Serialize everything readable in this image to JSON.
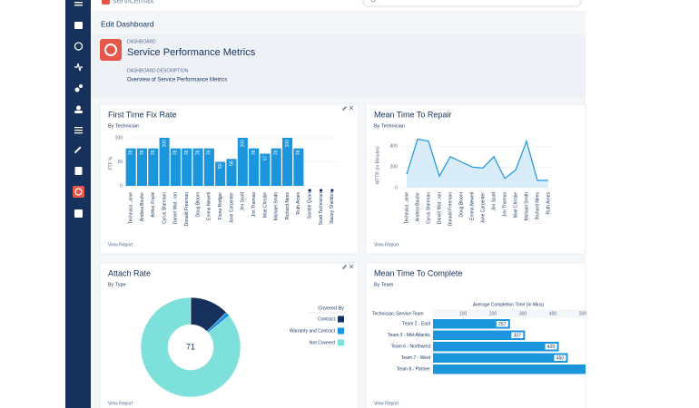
{
  "header": {
    "logo": "servicemax",
    "page_title": "Edit Dashboard",
    "dashboard_label": "DASHBOARD",
    "dashboard_title": "Service Performance Metrics",
    "description_label": "DASHBOARD DESCRIPTION",
    "description": "Overview of Service Performance Metrics"
  },
  "chart_data": [
    {
      "type": "bar",
      "title": "First Time Fix Rate",
      "subtitle": "By Technician",
      "y_label": "FTF %",
      "link": "View Report",
      "color": "#1b96dc",
      "categories": [
        "Technicia...ame",
        "Andrea Boufor",
        "Arthur Frank",
        "Cyrus Sherman",
        "Daniel Wat...ion",
        "Donald Freeman",
        "Doug Bloom",
        "Emma Newell",
        "Fiona Rodger",
        "Jane Carpenter",
        "Jim Scott",
        "Jim Thomas",
        "Mae Christie",
        "Michael Smith",
        "Richard Nees",
        "Ruth Ames",
        "Sandie Quan",
        "Scott Technician",
        "Stacey Sheldon"
      ],
      "values": [
        78,
        78,
        78,
        100,
        78,
        78,
        78,
        78,
        50,
        56,
        100,
        78,
        67,
        78,
        100,
        78,
        0,
        0,
        0
      ],
      "ylim": [
        0,
        100
      ],
      "yticks": [
        0,
        50,
        100
      ]
    },
    {
      "type": "line",
      "title": "Mean Time To Repair",
      "subtitle": "By Technician",
      "y_label": "MTTR (In Minutes)",
      "link": "View Report",
      "color": "#1b96dc",
      "fill": "#d8edf9",
      "categories": [
        "Technicia...ame",
        "Andrea Boufor",
        "Cyrus Sherman",
        "Daniel Wat...ion",
        "Donald Freeman",
        "Doug Bloom",
        "Emma Newell",
        "Jane Carpenter",
        "Jim Scott",
        "Jim Thomas",
        "Mae Christie",
        "Michael Smith",
        "Richard Nees",
        "Ruth Ames"
      ],
      "values": [
        130,
        470,
        450,
        110,
        300,
        250,
        200,
        190,
        300,
        90,
        170,
        450,
        70,
        70
      ],
      "ylim": [
        0,
        500
      ],
      "yticks": [
        0,
        200,
        400
      ]
    },
    {
      "type": "donut",
      "title": "Attach Rate",
      "subtitle": "By Type",
      "link": "View Report",
      "legend_title": "Covered By",
      "total": 71,
      "categories": [
        "Contract",
        "Warranty and Contract",
        "Not Covered"
      ],
      "values": [
        9,
        1,
        61
      ],
      "colors": [
        "#16325c",
        "#1b96dc",
        "#7ee0db"
      ]
    },
    {
      "type": "hbar",
      "title": "Mean Time To Complete",
      "subtitle": "By Team",
      "x_label": "Average Completion Time (In Mins)",
      "category_header": "Technician: Service Team",
      "link": "View Report",
      "color": "#1b96dc",
      "categories": [
        "Team 2 - East",
        "Team 3 - Mid-Atlantic",
        "Team 6 - Northwest",
        "Team 7 - West",
        "Team 8 - Partner"
      ],
      "values": [
        257,
        307,
        420,
        450,
        520
      ],
      "value_labels": [
        "257",
        "307",
        "420",
        "450",
        null
      ],
      "xlim": [
        0,
        500
      ],
      "xticks": [
        100,
        200,
        300,
        400,
        500
      ]
    }
  ]
}
